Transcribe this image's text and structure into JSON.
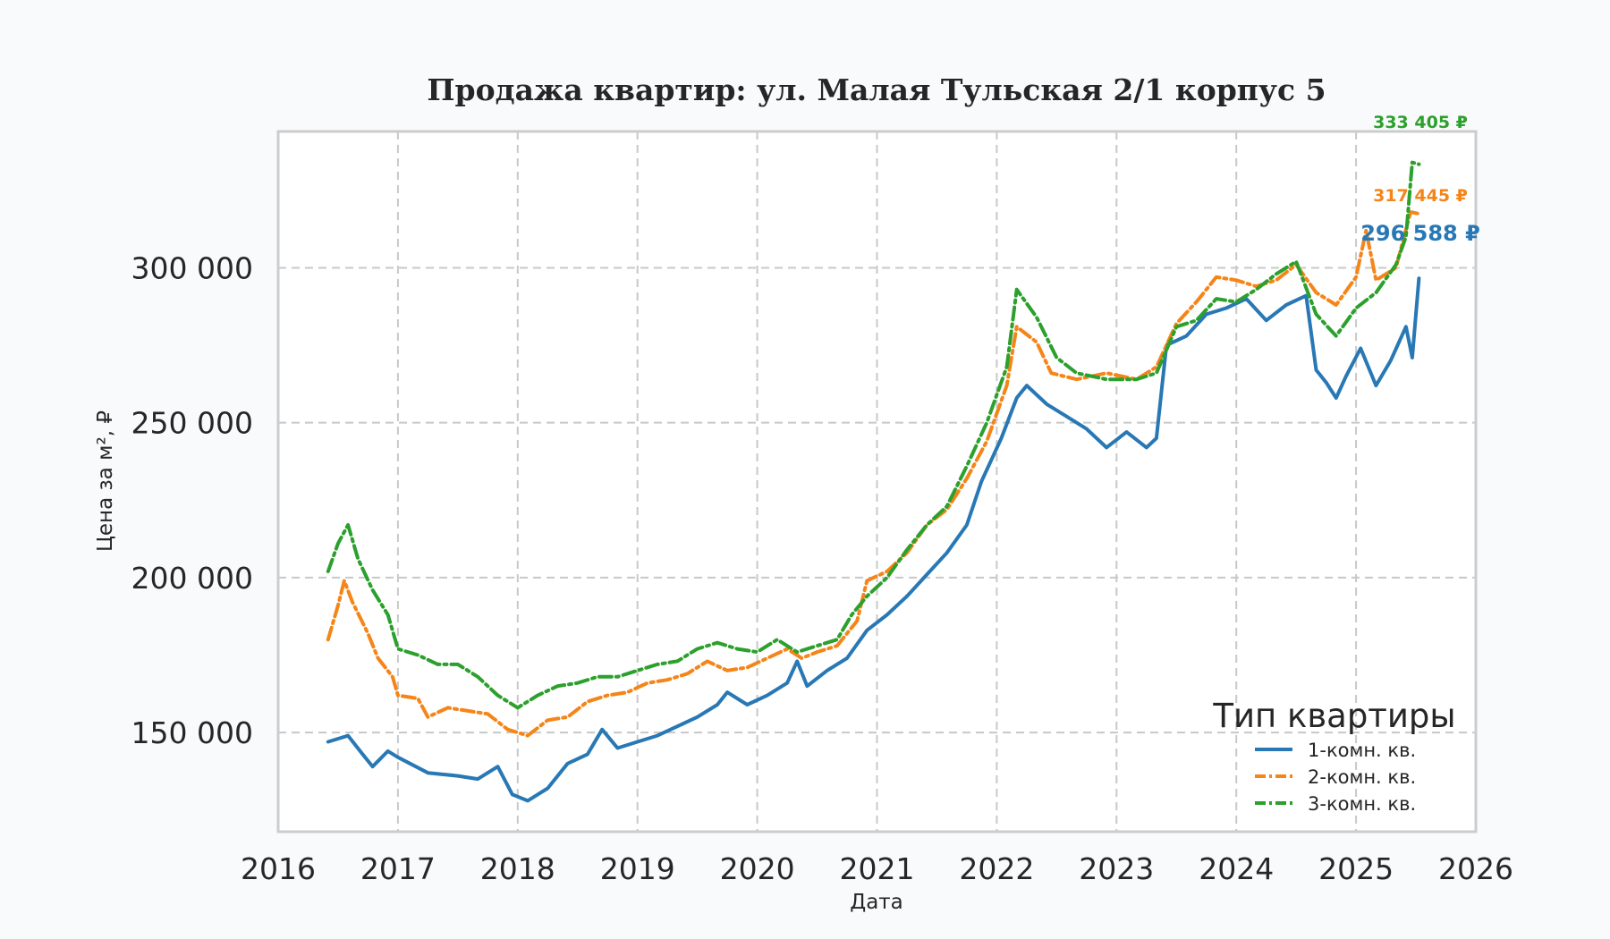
{
  "chart_data": {
    "type": "line",
    "title": "Продажа квартир: ул. Малая Тульская 2/1 корпус 5",
    "xlabel": "Дата",
    "ylabel": "Цена за м², ₽",
    "xlim": [
      "2016-01-01",
      "2026-01-01"
    ],
    "ylim": [
      118000,
      344000
    ],
    "x_ticks": [
      "2016",
      "2017",
      "2018",
      "2019",
      "2020",
      "2021",
      "2022",
      "2023",
      "2024",
      "2025",
      "2026"
    ],
    "y_ticks": [
      150000,
      200000,
      250000,
      300000
    ],
    "y_tick_labels": [
      "150 000",
      "200 000",
      "250 000",
      "300 000"
    ],
    "grid": true,
    "legend": {
      "title": "Тип квартиры",
      "placement": "bottom-right"
    },
    "series": [
      {
        "name": "1-комн. кв.",
        "color": "#2878b5",
        "dash": "solid",
        "end_label": "296 588 ₽",
        "points": [
          [
            "2016-06-01",
            147000
          ],
          [
            "2016-08-01",
            149000
          ],
          [
            "2016-09-15",
            143000
          ],
          [
            "2016-10-15",
            139000
          ],
          [
            "2016-12-01",
            144000
          ],
          [
            "2017-01-01",
            142000
          ],
          [
            "2017-04-01",
            137000
          ],
          [
            "2017-07-01",
            136000
          ],
          [
            "2017-09-01",
            135000
          ],
          [
            "2017-11-01",
            139000
          ],
          [
            "2017-12-15",
            130000
          ],
          [
            "2018-02-01",
            128000
          ],
          [
            "2018-04-01",
            132000
          ],
          [
            "2018-06-01",
            140000
          ],
          [
            "2018-08-01",
            143000
          ],
          [
            "2018-09-15",
            151000
          ],
          [
            "2018-11-01",
            145000
          ],
          [
            "2019-01-01",
            147000
          ],
          [
            "2019-03-01",
            149000
          ],
          [
            "2019-05-01",
            152000
          ],
          [
            "2019-07-01",
            155000
          ],
          [
            "2019-09-01",
            159000
          ],
          [
            "2019-10-01",
            163000
          ],
          [
            "2019-12-01",
            159000
          ],
          [
            "2020-02-01",
            162000
          ],
          [
            "2020-04-01",
            166000
          ],
          [
            "2020-05-01",
            173000
          ],
          [
            "2020-06-01",
            165000
          ],
          [
            "2020-08-01",
            170000
          ],
          [
            "2020-10-01",
            174000
          ],
          [
            "2020-12-01",
            183000
          ],
          [
            "2021-02-01",
            188000
          ],
          [
            "2021-04-01",
            194000
          ],
          [
            "2021-06-01",
            201000
          ],
          [
            "2021-08-01",
            208000
          ],
          [
            "2021-10-01",
            217000
          ],
          [
            "2021-11-15",
            231000
          ],
          [
            "2021-12-15",
            238000
          ],
          [
            "2022-01-15",
            245000
          ],
          [
            "2022-03-01",
            258000
          ],
          [
            "2022-04-01",
            262000
          ],
          [
            "2022-06-01",
            256000
          ],
          [
            "2022-08-01",
            252000
          ],
          [
            "2022-10-01",
            248000
          ],
          [
            "2022-12-01",
            242000
          ],
          [
            "2023-02-01",
            247000
          ],
          [
            "2023-04-01",
            242000
          ],
          [
            "2023-05-01",
            245000
          ],
          [
            "2023-06-01",
            275000
          ],
          [
            "2023-08-01",
            278000
          ],
          [
            "2023-10-01",
            285000
          ],
          [
            "2023-12-01",
            287000
          ],
          [
            "2024-02-01",
            290000
          ],
          [
            "2024-04-01",
            283000
          ],
          [
            "2024-06-01",
            288000
          ],
          [
            "2024-08-01",
            291000
          ],
          [
            "2024-09-01",
            267000
          ],
          [
            "2024-10-01",
            263000
          ],
          [
            "2024-11-01",
            258000
          ],
          [
            "2024-12-01",
            265000
          ],
          [
            "2025-01-15",
            274000
          ],
          [
            "2025-03-01",
            262000
          ],
          [
            "2025-04-15",
            270000
          ],
          [
            "2025-06-01",
            281000
          ],
          [
            "2025-06-20",
            271000
          ],
          [
            "2025-07-10",
            296588
          ]
        ]
      },
      {
        "name": "2-комн. кв.",
        "color": "#f58518",
        "dash": "dashdot",
        "end_label": "317 445 ₽",
        "points": [
          [
            "2016-06-01",
            180000
          ],
          [
            "2016-07-01",
            191000
          ],
          [
            "2016-07-20",
            199000
          ],
          [
            "2016-08-15",
            192000
          ],
          [
            "2016-10-01",
            182000
          ],
          [
            "2016-11-01",
            174000
          ],
          [
            "2016-12-15",
            168000
          ],
          [
            "2017-01-01",
            162000
          ],
          [
            "2017-03-01",
            161000
          ],
          [
            "2017-04-01",
            155000
          ],
          [
            "2017-06-01",
            158000
          ],
          [
            "2017-08-01",
            157000
          ],
          [
            "2017-10-01",
            156000
          ],
          [
            "2017-12-01",
            151000
          ],
          [
            "2018-02-01",
            149000
          ],
          [
            "2018-04-01",
            154000
          ],
          [
            "2018-06-01",
            155000
          ],
          [
            "2018-08-01",
            160000
          ],
          [
            "2018-10-01",
            162000
          ],
          [
            "2018-12-01",
            163000
          ],
          [
            "2019-02-01",
            166000
          ],
          [
            "2019-04-01",
            167000
          ],
          [
            "2019-06-01",
            169000
          ],
          [
            "2019-08-01",
            173000
          ],
          [
            "2019-10-01",
            170000
          ],
          [
            "2019-12-01",
            171000
          ],
          [
            "2020-02-01",
            174000
          ],
          [
            "2020-04-01",
            177000
          ],
          [
            "2020-05-15",
            174000
          ],
          [
            "2020-07-01",
            176000
          ],
          [
            "2020-09-01",
            178000
          ],
          [
            "2020-11-01",
            186000
          ],
          [
            "2020-12-01",
            199000
          ],
          [
            "2021-02-01",
            202000
          ],
          [
            "2021-04-01",
            208000
          ],
          [
            "2021-06-01",
            217000
          ],
          [
            "2021-08-01",
            222000
          ],
          [
            "2021-10-01",
            232000
          ],
          [
            "2021-12-01",
            244000
          ],
          [
            "2022-02-01",
            262000
          ],
          [
            "2022-03-01",
            281000
          ],
          [
            "2022-05-01",
            276000
          ],
          [
            "2022-06-15",
            266000
          ],
          [
            "2022-09-01",
            264000
          ],
          [
            "2022-12-01",
            266000
          ],
          [
            "2023-03-01",
            264000
          ],
          [
            "2023-05-01",
            268000
          ],
          [
            "2023-07-01",
            282000
          ],
          [
            "2023-09-01",
            289000
          ],
          [
            "2023-11-01",
            297000
          ],
          [
            "2024-01-01",
            296000
          ],
          [
            "2024-03-01",
            294000
          ],
          [
            "2024-05-01",
            296000
          ],
          [
            "2024-07-01",
            301000
          ],
          [
            "2024-09-01",
            292000
          ],
          [
            "2024-11-01",
            288000
          ],
          [
            "2025-01-01",
            297000
          ],
          [
            "2025-02-01",
            312000
          ],
          [
            "2025-03-01",
            296000
          ],
          [
            "2025-05-01",
            300000
          ],
          [
            "2025-06-15",
            318000
          ],
          [
            "2025-07-10",
            317445
          ]
        ]
      },
      {
        "name": "3-комн. кв.",
        "color": "#2ca02c",
        "dash": "dashdot",
        "end_label": "333 405 ₽",
        "points": [
          [
            "2016-06-01",
            202000
          ],
          [
            "2016-07-01",
            211000
          ],
          [
            "2016-08-01",
            217000
          ],
          [
            "2016-09-01",
            206000
          ],
          [
            "2016-10-15",
            196000
          ],
          [
            "2016-12-01",
            188000
          ],
          [
            "2017-01-01",
            177000
          ],
          [
            "2017-03-01",
            175000
          ],
          [
            "2017-05-01",
            172000
          ],
          [
            "2017-07-01",
            172000
          ],
          [
            "2017-09-01",
            168000
          ],
          [
            "2017-11-01",
            162000
          ],
          [
            "2018-01-01",
            158000
          ],
          [
            "2018-03-01",
            162000
          ],
          [
            "2018-05-01",
            165000
          ],
          [
            "2018-07-01",
            166000
          ],
          [
            "2018-09-01",
            168000
          ],
          [
            "2018-11-01",
            168000
          ],
          [
            "2019-01-01",
            170000
          ],
          [
            "2019-03-01",
            172000
          ],
          [
            "2019-05-01",
            173000
          ],
          [
            "2019-07-01",
            177000
          ],
          [
            "2019-09-01",
            179000
          ],
          [
            "2019-11-01",
            177000
          ],
          [
            "2020-01-01",
            176000
          ],
          [
            "2020-03-01",
            180000
          ],
          [
            "2020-05-01",
            176000
          ],
          [
            "2020-07-01",
            178000
          ],
          [
            "2020-09-01",
            180000
          ],
          [
            "2020-10-15",
            188000
          ],
          [
            "2020-12-01",
            194000
          ],
          [
            "2021-02-01",
            200000
          ],
          [
            "2021-04-01",
            209000
          ],
          [
            "2021-06-01",
            217000
          ],
          [
            "2021-08-01",
            223000
          ],
          [
            "2021-10-01",
            236000
          ],
          [
            "2021-12-01",
            250000
          ],
          [
            "2022-02-01",
            268000
          ],
          [
            "2022-03-01",
            293000
          ],
          [
            "2022-05-01",
            284000
          ],
          [
            "2022-07-01",
            271000
          ],
          [
            "2022-09-01",
            266000
          ],
          [
            "2022-12-01",
            264000
          ],
          [
            "2023-03-01",
            264000
          ],
          [
            "2023-05-01",
            266000
          ],
          [
            "2023-07-01",
            281000
          ],
          [
            "2023-09-01",
            283000
          ],
          [
            "2023-11-01",
            290000
          ],
          [
            "2024-01-01",
            289000
          ],
          [
            "2024-03-01",
            293000
          ],
          [
            "2024-05-01",
            298000
          ],
          [
            "2024-07-01",
            302000
          ],
          [
            "2024-09-01",
            285000
          ],
          [
            "2024-11-01",
            278000
          ],
          [
            "2025-01-01",
            287000
          ],
          [
            "2025-03-01",
            292000
          ],
          [
            "2025-05-01",
            301000
          ],
          [
            "2025-06-01",
            310000
          ],
          [
            "2025-06-20",
            334000
          ],
          [
            "2025-07-10",
            333405
          ]
        ]
      }
    ]
  }
}
